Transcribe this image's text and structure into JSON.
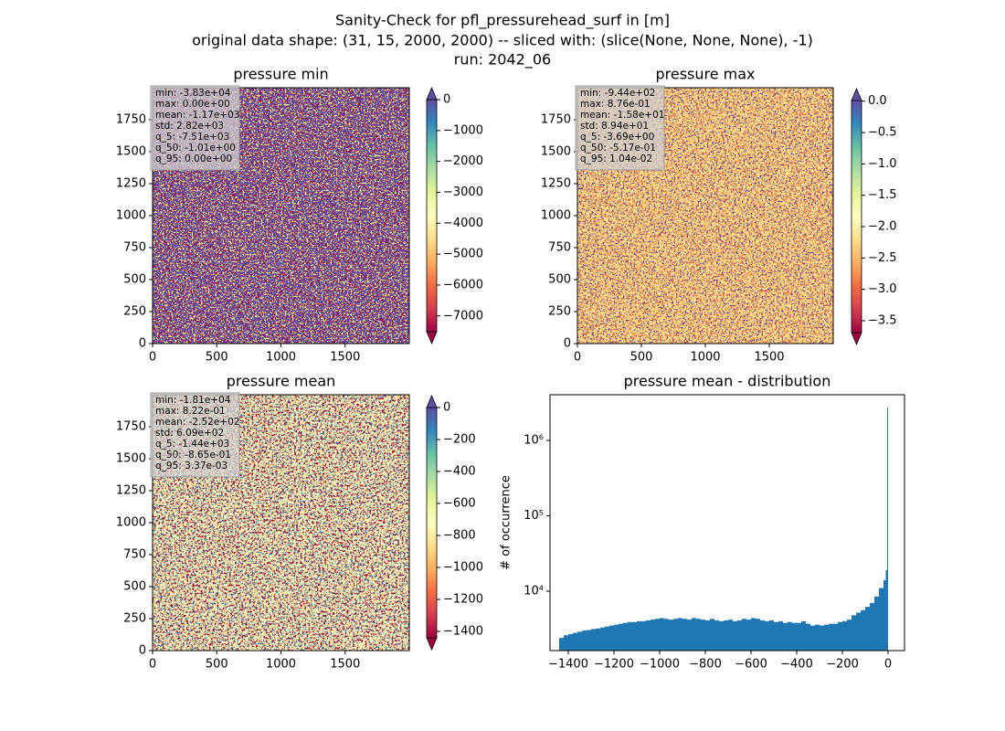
{
  "figure": {
    "title_lines": [
      "Sanity-Check for pfl_pressurehead_surf in [m]",
      "original data shape: (31, 15, 2000, 2000) -- sliced with: (slice(None, None, None), -1)",
      "run: 2042_06"
    ]
  },
  "cmap_colors": [
    "#9e0142",
    "#d53e4f",
    "#f46d43",
    "#fdae61",
    "#fee08b",
    "#ffffbf",
    "#e6f598",
    "#abdda4",
    "#66c2a5",
    "#3288bd",
    "#5e4fa2"
  ],
  "chart_data": [
    {
      "type": "heatmap",
      "title": "pressure min",
      "xlim": [
        0,
        2000
      ],
      "xticks": [
        0,
        500,
        1000,
        1500
      ],
      "ylim": [
        0,
        2000
      ],
      "yticks": [
        0,
        250,
        500,
        750,
        1000,
        1250,
        1500,
        1750
      ],
      "colors": [
        "#5e4fa2",
        "#9e0142",
        "#e6f598"
      ],
      "stats": [
        "min: -3.83e+04",
        "max: 0.00e+00",
        "mean: -1.17e+03",
        "std: 2.82e+03",
        "q_5: -7.51e+03",
        "q_50: -1.01e+00",
        "q_95: 0.00e+00"
      ],
      "colorbar": {
        "lim": [
          -7510,
          0
        ],
        "extend": "both",
        "ticks": [
          0,
          {
            "value": -1000,
            "label": "−1000"
          },
          {
            "value": -2000,
            "label": "−2000"
          },
          {
            "value": -3000,
            "label": "−3000"
          },
          {
            "value": -4000,
            "label": "−4000"
          },
          {
            "value": -5000,
            "label": "−5000"
          },
          {
            "value": -6000,
            "label": "−6000"
          },
          {
            "value": -7000,
            "label": "−7000"
          }
        ]
      }
    },
    {
      "type": "heatmap",
      "title": "pressure max",
      "xlim": [
        0,
        2000
      ],
      "xticks": [
        0,
        500,
        1000,
        1500
      ],
      "ylim": [
        0,
        2000
      ],
      "yticks": [
        0,
        250,
        500,
        750,
        1000,
        1250,
        1500,
        1750
      ],
      "colors": [
        "#fee08b",
        "#f46d43",
        "#5e4fa2"
      ],
      "stats": [
        "min: -9.44e+02",
        "max: 8.76e-01",
        "mean: -1.58e+01",
        "std: 8.94e+01",
        "q_5: -3.69e+00",
        "q_50: -5.17e-01",
        "q_95: 1.04e-02"
      ],
      "colorbar": {
        "lim": [
          -3.69,
          0.0104
        ],
        "extend": "both",
        "ticks": [
          {
            "value": 0,
            "label": "0.0"
          },
          {
            "value": -0.5,
            "label": "−0.5"
          },
          {
            "value": -1,
            "label": "−1.0"
          },
          {
            "value": -1.5,
            "label": "−1.5"
          },
          {
            "value": -2,
            "label": "−2.0"
          },
          {
            "value": -2.5,
            "label": "−2.5"
          },
          {
            "value": -3,
            "label": "−3.0"
          },
          {
            "value": -3.5,
            "label": "−3.5"
          }
        ]
      }
    },
    {
      "type": "heatmap",
      "title": "pressure mean",
      "xlim": [
        0,
        2000
      ],
      "xticks": [
        0,
        500,
        1000,
        1500
      ],
      "ylim": [
        0,
        2000
      ],
      "yticks": [
        0,
        250,
        500,
        750,
        1000,
        1250,
        1500,
        1750
      ],
      "colors": [
        "#ffffbf",
        "#9e0142",
        "#3288bd"
      ],
      "stats": [
        "min: -1.81e+04",
        "max: 8.22e-01",
        "mean: -2.52e+02",
        "std: 6.09e+02",
        "q_5: -1.44e+03",
        "q_50: -8.65e-01",
        "q_95: 3.37e-03"
      ],
      "colorbar": {
        "lim": [
          -1440,
          0.00337
        ],
        "extend": "both",
        "ticks": [
          0,
          {
            "value": -200,
            "label": "−200"
          },
          {
            "value": -400,
            "label": "−400"
          },
          {
            "value": -600,
            "label": "−600"
          },
          {
            "value": -800,
            "label": "−800"
          },
          {
            "value": -1000,
            "label": "−1000"
          },
          {
            "value": -1200,
            "label": "−1200"
          },
          {
            "value": -1400,
            "label": "−1400"
          }
        ]
      }
    },
    {
      "type": "histogram",
      "title": "pressure mean - distribution",
      "ylabel": "# of occurrence",
      "color": "#1f77b4",
      "yscale": "log",
      "xlim": [
        -1480,
        72
      ],
      "xticks": [
        {
          "value": -1400,
          "label": "−1400"
        },
        {
          "value": -1200,
          "label": "−1200"
        },
        {
          "value": -1000,
          "label": "−1000"
        },
        {
          "value": -800,
          "label": "−800"
        },
        {
          "value": -600,
          "label": "−600"
        },
        {
          "value": -400,
          "label": "−400"
        },
        {
          "value": -200,
          "label": "−200"
        },
        0
      ],
      "ylim": [
        1630,
        4040000
      ],
      "yticks": [
        {
          "value": 10000,
          "label": "10⁴"
        },
        {
          "value": 100000,
          "label": "10⁵"
        },
        {
          "value": 1000000,
          "label": "10⁶"
        }
      ],
      "bins": [
        -1440,
        -1420,
        -1400,
        -1380,
        -1360,
        -1340,
        -1320,
        -1300,
        -1280,
        -1260,
        -1240,
        -1220,
        -1200,
        -1180,
        -1160,
        -1140,
        -1120,
        -1100,
        -1080,
        -1060,
        -1040,
        -1020,
        -1000,
        -980,
        -960,
        -940,
        -920,
        -900,
        -880,
        -860,
        -840,
        -820,
        -800,
        -780,
        -760,
        -740,
        -720,
        -700,
        -680,
        -660,
        -640,
        -620,
        -600,
        -580,
        -560,
        -540,
        -520,
        -500,
        -480,
        -460,
        -440,
        -420,
        -400,
        -380,
        -360,
        -340,
        -320,
        -300,
        -280,
        -260,
        -240,
        -220,
        -200,
        -180,
        -160,
        -140,
        -120,
        -100,
        -80,
        -60,
        -40,
        -20,
        -10,
        -4,
        0
      ],
      "counts": [
        2400,
        2600,
        2700,
        2800,
        2900,
        3000,
        3050,
        3150,
        3200,
        3300,
        3400,
        3500,
        3600,
        3700,
        3800,
        3900,
        3900,
        4000,
        4000,
        4100,
        4200,
        4300,
        4400,
        4300,
        4200,
        4300,
        4400,
        4300,
        4200,
        4400,
        4300,
        4200,
        4100,
        4300,
        4100,
        4000,
        4100,
        4200,
        4000,
        4100,
        4300,
        4200,
        4400,
        4300,
        4100,
        4000,
        4100,
        3900,
        4000,
        3800,
        3900,
        3800,
        3800,
        4000,
        3700,
        3500,
        3600,
        3500,
        3600,
        3700,
        3700,
        3900,
        4000,
        4200,
        4800,
        5200,
        5600,
        6200,
        7000,
        8500,
        11000,
        14000,
        19000,
        2700000
      ]
    }
  ]
}
